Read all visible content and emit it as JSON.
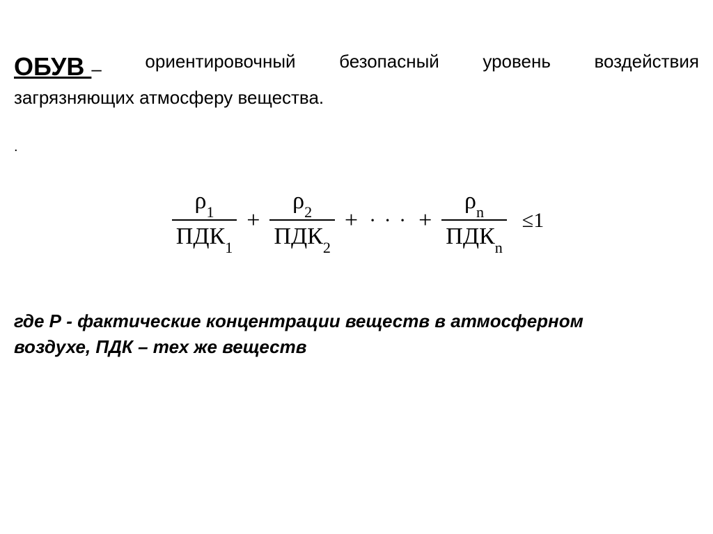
{
  "term": "ОБУВ ",
  "dash": "–",
  "def_words": [
    "ориентировочный",
    "безопасный",
    "уровень",
    "воздействия"
  ],
  "def_line2": "загрязняющих атмосферу вещества.",
  "dot": ".",
  "formula": {
    "terms": [
      {
        "num_sym": "ρ",
        "num_sub": "1",
        "den_txt": "ПДК",
        "den_sub": "1"
      },
      {
        "num_sym": "ρ",
        "num_sub": "2",
        "den_txt": "ПДК",
        "den_sub": "2"
      },
      {
        "num_sym": "ρ",
        "num_sub": "n",
        "den_txt": "ПДК",
        "den_sub": "n"
      }
    ],
    "plus": "+",
    "dots": "· · ·",
    "rel": "≤1"
  },
  "where_line1": "где Р - фактические концентрации веществ в атмосферном",
  "where_line2": "воздухе, ПДК – тех же веществ"
}
